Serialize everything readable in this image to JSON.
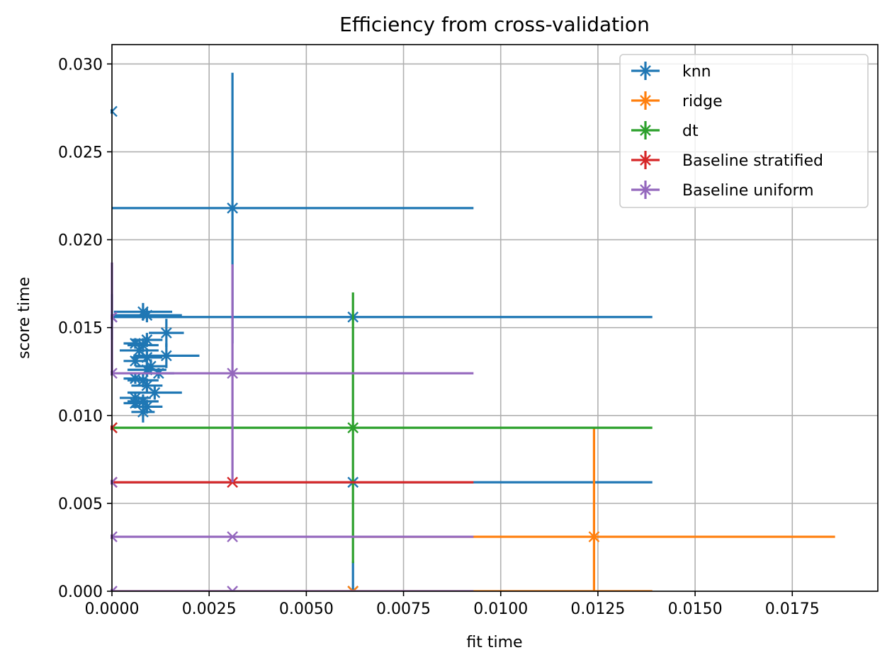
{
  "chart_data": {
    "type": "scatter",
    "title": "Efficiency from cross-validation",
    "xlabel": "fit time",
    "ylabel": "score time",
    "xlim": [
      0,
      0.0197
    ],
    "ylim": [
      0,
      0.0311
    ],
    "xticks": [
      0,
      0.0025,
      0.005,
      0.0075,
      0.01,
      0.0125,
      0.015,
      0.0175
    ],
    "xtick_labels": [
      "0.0000",
      "0.0025",
      "0.0050",
      "0.0075",
      "0.0100",
      "0.0125",
      "0.0150",
      "0.0175"
    ],
    "yticks": [
      0,
      0.005,
      0.01,
      0.015,
      0.02,
      0.025,
      0.03
    ],
    "ytick_labels": [
      "0.000",
      "0.005",
      "0.010",
      "0.015",
      "0.020",
      "0.025",
      "0.030"
    ],
    "grid": true,
    "legend_position": "top-right",
    "series": [
      {
        "name": "knn",
        "color": "#1f77b4",
        "points": [
          {
            "x": 0.0,
            "y": 0.0273,
            "xerr": 0.0,
            "yerr": 0.0
          },
          {
            "x": 0.0031,
            "y": 0.0218,
            "xerr": 0.0062,
            "yerr": 0.0077
          },
          {
            "x": 0.0062,
            "y": 0.0156,
            "xerr": 0.0077,
            "yerr": 0.0
          },
          {
            "x": 0.0062,
            "y": 0.0062,
            "xerr": 0.0077,
            "yerr": 0.0
          },
          {
            "x": 0.0062,
            "y": 0.0,
            "xerr": 0.0,
            "yerr": 0.0017
          },
          {
            "x": 0.0008,
            "y": 0.0159,
            "xerr": 0.00075,
            "yerr": 0.0005
          },
          {
            "x": 0.0009,
            "y": 0.0157,
            "xerr": 0.0009,
            "yerr": 0.0004
          },
          {
            "x": 0.0,
            "y": 0.0156,
            "xerr": 0.0,
            "yerr": 0.0013
          },
          {
            "x": 0.0014,
            "y": 0.0147,
            "xerr": 0.00045,
            "yerr": 0.0008
          },
          {
            "x": 0.0009,
            "y": 0.0143,
            "xerr": 0.0004,
            "yerr": 0.0004
          },
          {
            "x": 0.0006,
            "y": 0.0141,
            "xerr": 0.0003,
            "yerr": 0.0003
          },
          {
            "x": 0.0008,
            "y": 0.014,
            "xerr": 0.0004,
            "yerr": 0.0004
          },
          {
            "x": 0.0007,
            "y": 0.0137,
            "xerr": 0.0005,
            "yerr": 0.0003
          },
          {
            "x": 0.0014,
            "y": 0.0134,
            "xerr": 0.00085,
            "yerr": 0.0007
          },
          {
            "x": 0.0009,
            "y": 0.0133,
            "xerr": 0.0004,
            "yerr": 0.0005
          },
          {
            "x": 0.0006,
            "y": 0.0131,
            "xerr": 0.0003,
            "yerr": 0.0003
          },
          {
            "x": 0.001,
            "y": 0.0128,
            "xerr": 0.0004,
            "yerr": 0.0004
          },
          {
            "x": 0.0009,
            "y": 0.0126,
            "xerr": 0.0005,
            "yerr": 0.0004
          },
          {
            "x": 0.0012,
            "y": 0.0124,
            "xerr": 0.0004,
            "yerr": 0.0003
          },
          {
            "x": 0.0006,
            "y": 0.0121,
            "xerr": 0.0003,
            "yerr": 0.0003
          },
          {
            "x": 0.0008,
            "y": 0.012,
            "xerr": 0.0004,
            "yerr": 0.0004
          },
          {
            "x": 0.0009,
            "y": 0.0117,
            "xerr": 0.0004,
            "yerr": 0.0004
          },
          {
            "x": 0.0011,
            "y": 0.0113,
            "xerr": 0.0007,
            "yerr": 0.0004
          },
          {
            "x": 0.0006,
            "y": 0.011,
            "xerr": 0.0004,
            "yerr": 0.0003
          },
          {
            "x": 0.0008,
            "y": 0.0108,
            "xerr": 0.0004,
            "yerr": 0.0004
          },
          {
            "x": 0.0006,
            "y": 0.0107,
            "xerr": 0.0003,
            "yerr": 0.0003
          },
          {
            "x": 0.0009,
            "y": 0.0105,
            "xerr": 0.0004,
            "yerr": 0.0004
          },
          {
            "x": 0.0008,
            "y": 0.0102,
            "xerr": 0.0003,
            "yerr": 0.0006
          }
        ]
      },
      {
        "name": "ridge",
        "color": "#ff7f0e",
        "points": [
          {
            "x": 0.0124,
            "y": 0.0031,
            "xerr": 0.0062,
            "yerr": 0.0062
          },
          {
            "x": 0.0062,
            "y": 0.0,
            "xerr": 0.0077,
            "yerr": 0.0
          }
        ]
      },
      {
        "name": "dt",
        "color": "#2ca02c",
        "points": [
          {
            "x": 0.0062,
            "y": 0.0093,
            "xerr": 0.0077,
            "yerr": 0.0077
          },
          {
            "x": 0.0,
            "y": 0.0093,
            "xerr": 0.0,
            "yerr": 0.0
          }
        ]
      },
      {
        "name": "Baseline stratified",
        "color": "#d62728",
        "points": [
          {
            "x": 0.0031,
            "y": 0.0062,
            "xerr": 0.0062,
            "yerr": 0.0
          },
          {
            "x": 0.0,
            "y": 0.0062,
            "xerr": 0.0,
            "yerr": 0.0
          },
          {
            "x": 0.0,
            "y": 0.0093,
            "xerr": 0.0,
            "yerr": 0.0
          }
        ]
      },
      {
        "name": "Baseline uniform",
        "color": "#9467bd",
        "points": [
          {
            "x": 0.0031,
            "y": 0.0124,
            "xerr": 0.0062,
            "yerr": 0.0062
          },
          {
            "x": 0.0031,
            "y": 0.0031,
            "xerr": 0.0062,
            "yerr": 0.0
          },
          {
            "x": 0.0031,
            "y": 0.0,
            "xerr": 0.0062,
            "yerr": 0.0
          },
          {
            "x": 0.0,
            "y": 0.0031,
            "xerr": 0.0,
            "yerr": 0.0
          },
          {
            "x": 0.0,
            "y": 0.0,
            "xerr": 0.0,
            "yerr": 0.0
          },
          {
            "x": 0.0,
            "y": 0.0156,
            "xerr": 0.0,
            "yerr": 0.0031
          },
          {
            "x": 0.0,
            "y": 0.0124,
            "xerr": 0.0,
            "yerr": 0.0
          },
          {
            "x": 0.0,
            "y": 0.0062,
            "xerr": 0.0,
            "yerr": 0.0
          }
        ]
      }
    ]
  }
}
